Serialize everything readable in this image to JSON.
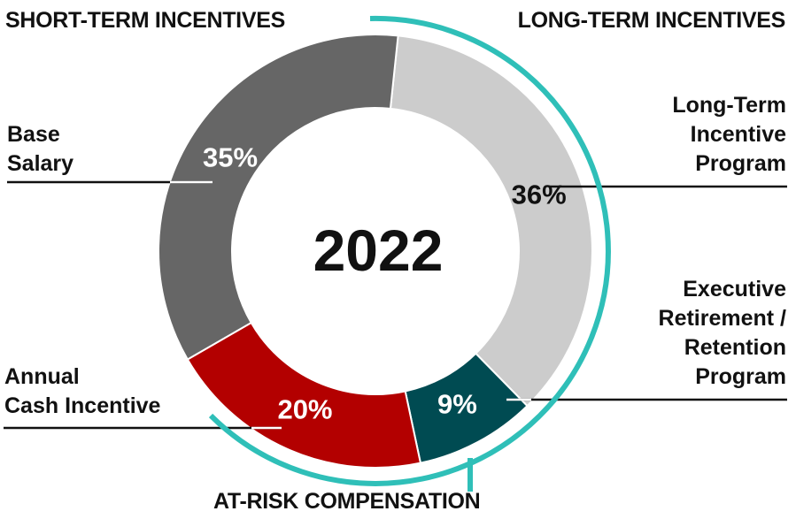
{
  "headers": {
    "short_term": "SHORT-TERM INCENTIVES",
    "long_term": "LONG-TERM INCENTIVES",
    "at_risk": "AT-RISK COMPENSATION"
  },
  "labels": {
    "base_salary": [
      "Base",
      "Salary"
    ],
    "annual_cash": [
      "Annual",
      "Cash Incentive"
    ],
    "ltip": [
      "Long-Term",
      "Incentive",
      "Program"
    ],
    "exec_retirement": [
      "Executive",
      "Retirement /",
      "Retention",
      "Program"
    ]
  },
  "colors": {
    "base_salary": "#666666",
    "ltip": "#cccccc",
    "exec_retirement": "#004b52",
    "annual_cash": "#b30000",
    "accent": "#2fbfb8"
  },
  "chart_data": {
    "type": "pie",
    "title": "2022",
    "slices": [
      {
        "name": "Long-Term Incentive Program",
        "value": 36,
        "label": "36%"
      },
      {
        "name": "Executive Retirement / Retention Program",
        "value": 9,
        "label": "9%"
      },
      {
        "name": "Annual Cash Incentive",
        "value": 20,
        "label": "20%"
      },
      {
        "name": "Base Salary",
        "value": 35,
        "label": "35%"
      }
    ]
  }
}
